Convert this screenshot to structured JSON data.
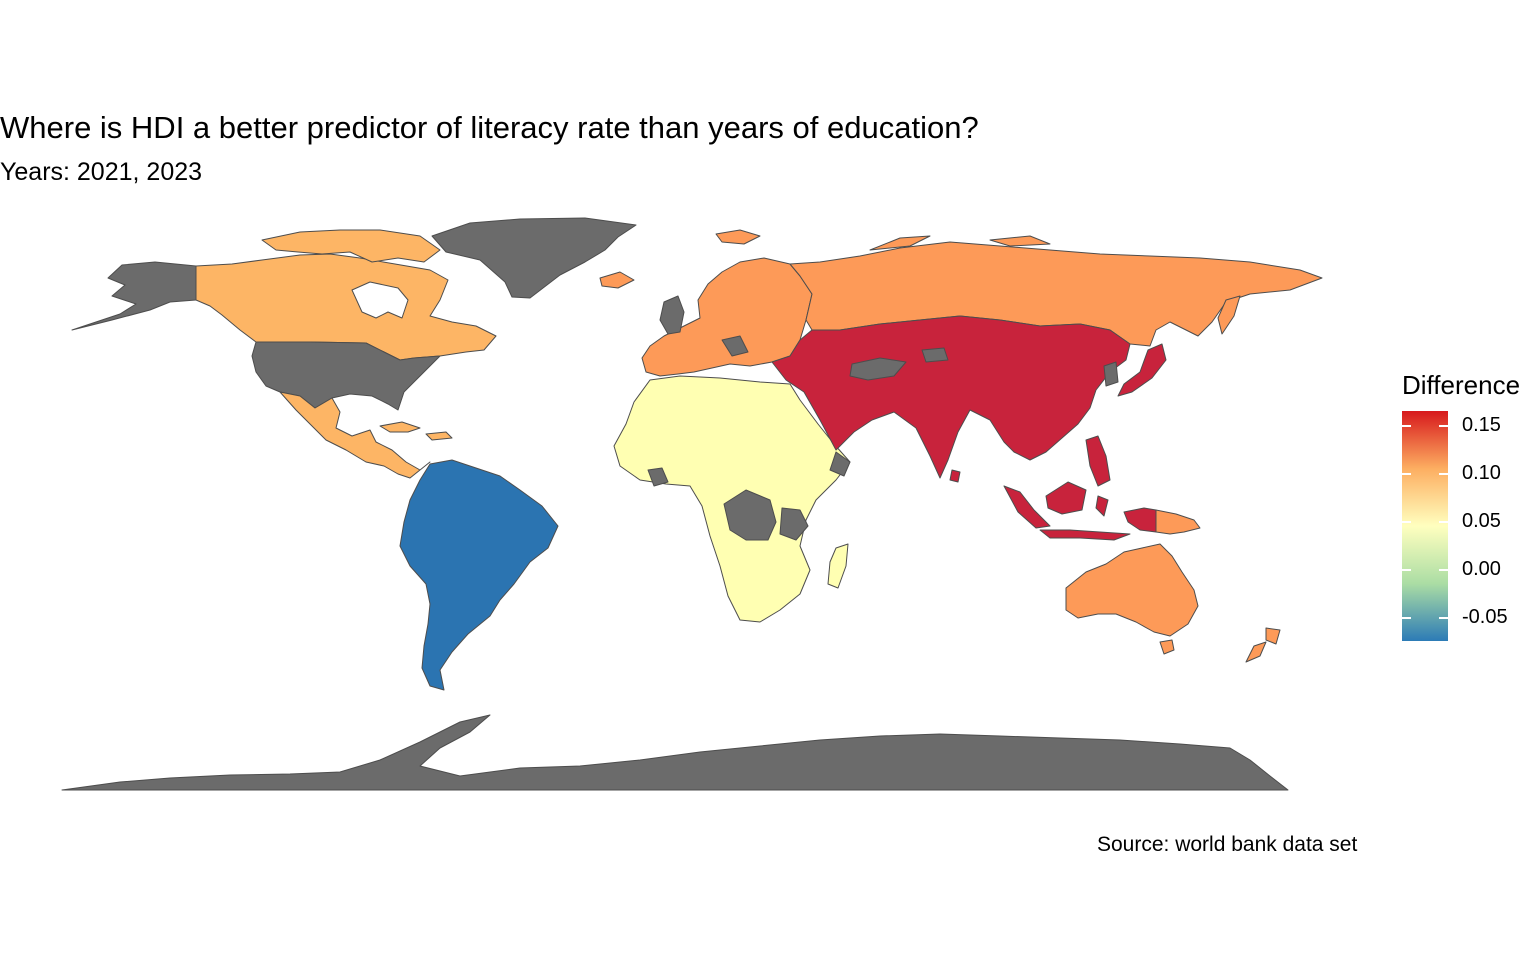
{
  "title": "Where is HDI a better predictor of literacy rate than years of education?",
  "subtitle": "Years: 2021, 2023",
  "caption": "Source: world bank data set",
  "legend": {
    "title": "Difference",
    "min": -0.075,
    "max": 0.165,
    "ticks": [
      0.15,
      0.1,
      0.05,
      0.0,
      -0.05
    ],
    "tick_labels": [
      "0.15",
      "0.10",
      "0.05",
      "0.00",
      "-0.05"
    ],
    "colors": [
      "#2c7bb6",
      "#abdda4",
      "#ffffbf",
      "#fdae61",
      "#d7191c"
    ]
  },
  "chart_data": {
    "type": "choropleth",
    "palette": "Spectral",
    "no_data_color": "#6b6b6b",
    "border_color": "#4d4d4d",
    "regions": [
      {
        "name": "South America",
        "value": -0.07,
        "color": "#2b74b1"
      },
      {
        "name": "Africa",
        "value": 0.04,
        "color": "#ffffb2"
      },
      {
        "name": "Canada",
        "value": 0.11,
        "color": "#fdb565"
      },
      {
        "name": "Mexico and Central America",
        "value": 0.11,
        "color": "#fdb565"
      },
      {
        "name": "Europe",
        "value": 0.12,
        "color": "#fd9a58"
      },
      {
        "name": "Russia",
        "value": 0.12,
        "color": "#fd9a58"
      },
      {
        "name": "Australia",
        "value": 0.12,
        "color": "#fd9a58"
      },
      {
        "name": "New Zealand",
        "value": 0.12,
        "color": "#fd9a58"
      },
      {
        "name": "Papua New Guinea",
        "value": 0.12,
        "color": "#fd9a58"
      },
      {
        "name": "Middle East",
        "value": 0.16,
        "color": "#c8233c"
      },
      {
        "name": "Central and South Asia",
        "value": 0.16,
        "color": "#c8233c"
      },
      {
        "name": "China",
        "value": 0.16,
        "color": "#c8233c"
      },
      {
        "name": "Japan",
        "value": 0.16,
        "color": "#c8233c"
      },
      {
        "name": "Southeast Asia",
        "value": 0.16,
        "color": "#c8233c"
      },
      {
        "name": "United States",
        "value": null,
        "color": "#6b6b6b"
      },
      {
        "name": "Alaska",
        "value": null,
        "color": "#6b6b6b"
      },
      {
        "name": "Greenland",
        "value": null,
        "color": "#6b6b6b"
      },
      {
        "name": "Antarctica",
        "value": null,
        "color": "#6b6b6b"
      }
    ]
  }
}
